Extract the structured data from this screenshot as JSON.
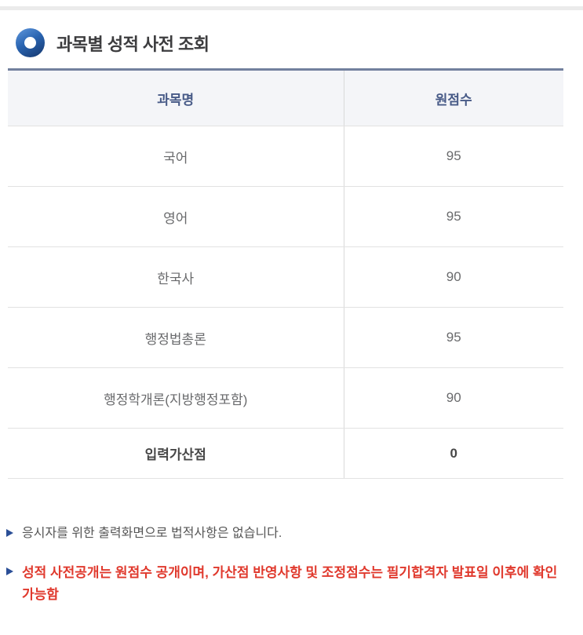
{
  "header": {
    "title": "과목별 성적 사전 조회"
  },
  "table": {
    "columns": [
      "과목명",
      "원점수"
    ],
    "rows": [
      {
        "subject": "국어",
        "score": "95"
      },
      {
        "subject": "영어",
        "score": "95"
      },
      {
        "subject": "한국사",
        "score": "90"
      },
      {
        "subject": "행정법총론",
        "score": "95"
      },
      {
        "subject": "행정학개론(지방행정포함)",
        "score": "90"
      },
      {
        "subject": "입력가산점",
        "score": "0"
      }
    ]
  },
  "notes": [
    {
      "text": "응시자를 위한 출력화면으로 법적사항은 없습니다.",
      "type": "info"
    },
    {
      "text": "성적 사전공개는 원점수 공개이며, 가산점 반영사항 및 조정점수는 필기합격자 발표일 이후에 확인 가능함",
      "type": "warning"
    }
  ],
  "icons": {
    "title_bullet": "donut-icon",
    "note_bullet": "triangle-right-icon"
  },
  "colors": {
    "top_strip": "#ebebeb",
    "title_text": "#3c3c3e",
    "table_top_border": "#72809e",
    "header_bg": "#f4f5f8",
    "header_text": "#475a87",
    "body_text": "#696a6c",
    "bold_text": "#474747",
    "row_border": "#e2e2e2",
    "column_divider": "#d9d9d9",
    "icon_blue": "#2a65b2",
    "icon_blue_light": "#5b93d8",
    "icon_blue_dark": "#173a72",
    "bullet_navy": "#2b4f97",
    "note_text": "#555555",
    "warning_red": "#e0392d"
  }
}
